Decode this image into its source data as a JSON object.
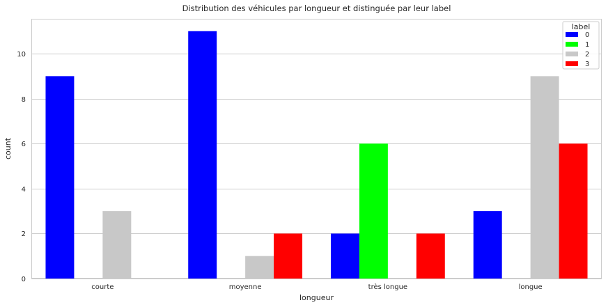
{
  "chart_data": {
    "type": "bar",
    "title": "Distribution des véhicules par longueur et distinguée par leur label",
    "xlabel": "longueur",
    "ylabel": "count",
    "categories": [
      "courte",
      "moyenne",
      "très longue",
      "longue"
    ],
    "ylim": [
      0,
      11.55
    ],
    "yticks": [
      0,
      2,
      4,
      6,
      8,
      10
    ],
    "grid": true,
    "legend": {
      "title": "label",
      "placement": "top-right"
    },
    "series": [
      {
        "name": "0",
        "color": "#0000ff",
        "values": [
          9,
          11,
          2,
          3
        ]
      },
      {
        "name": "1",
        "color": "#00ff00",
        "values": [
          0,
          0,
          6,
          0
        ]
      },
      {
        "name": "2",
        "color": "#c8c8c8",
        "values": [
          3,
          1,
          0,
          9
        ]
      },
      {
        "name": "3",
        "color": "#ff0000",
        "values": [
          0,
          2,
          2,
          6
        ]
      }
    ]
  }
}
